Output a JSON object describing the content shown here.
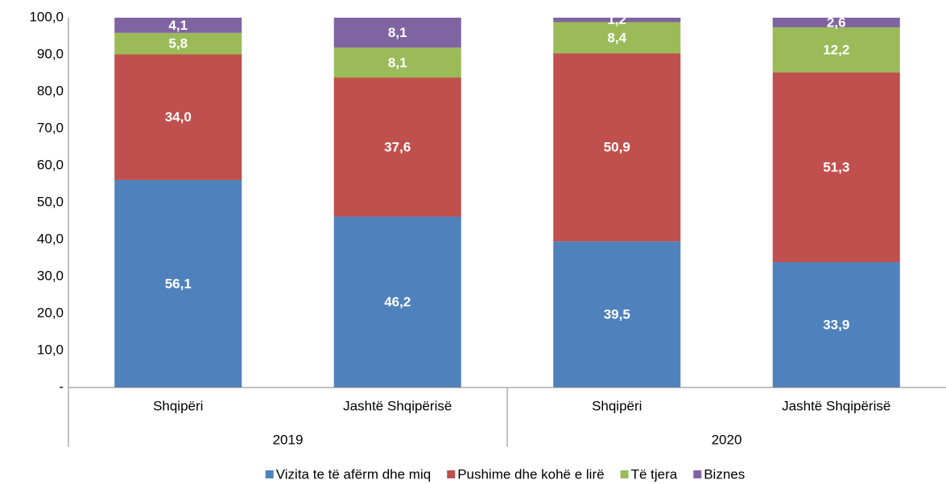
{
  "chart_data": {
    "type": "stacked_bar",
    "categories": [
      "Shqipëri",
      "Jashtë Shqipërisë",
      "Shqipëri",
      "Jashtë Shqipërisë"
    ],
    "groups": [
      "2019",
      "2020"
    ],
    "series": [
      {
        "name": "Vizita te të afërm dhe miq",
        "color": "#4f81bd",
        "values": [
          56.1,
          46.2,
          39.5,
          33.9
        ],
        "value_labels": [
          "56,1",
          "46,2",
          "39,5",
          "33,9"
        ]
      },
      {
        "name": "Pushime dhe kohë e lirë",
        "color": "#c0504d",
        "values": [
          34.0,
          37.6,
          50.9,
          51.3
        ],
        "value_labels": [
          "34,0",
          "37,6",
          "50,9",
          "51,3"
        ]
      },
      {
        "name": "Të tjera",
        "color": "#9bbb59",
        "values": [
          5.8,
          8.1,
          8.4,
          12.2
        ],
        "value_labels": [
          "5,8",
          "8,1",
          "8,4",
          "12,2"
        ]
      },
      {
        "name": "Biznes",
        "color": "#8064a2",
        "values": [
          4.1,
          8.1,
          1.2,
          2.6
        ],
        "value_labels": [
          "4,1",
          "8,1",
          "1,2",
          "2,6"
        ]
      }
    ],
    "ylim": [
      0,
      100
    ],
    "yticks": [
      {
        "value": 0,
        "label": "-"
      },
      {
        "value": 10,
        "label": "10,0"
      },
      {
        "value": 20,
        "label": "20,0"
      },
      {
        "value": 30,
        "label": "30,0"
      },
      {
        "value": 40,
        "label": "40,0"
      },
      {
        "value": 50,
        "label": "50,0"
      },
      {
        "value": 60,
        "label": "60,0"
      },
      {
        "value": 70,
        "label": "70,0"
      },
      {
        "value": 80,
        "label": "80,0"
      },
      {
        "value": 90,
        "label": "90,0"
      },
      {
        "value": 100,
        "label": "100,0"
      }
    ],
    "grid": false,
    "legend": "bottom"
  }
}
